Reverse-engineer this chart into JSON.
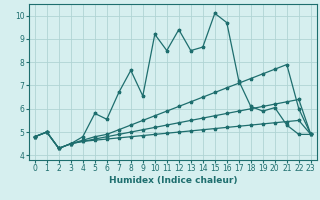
{
  "xlabel": "Humidex (Indice chaleur)",
  "xlim": [
    -0.5,
    23.5
  ],
  "ylim": [
    3.8,
    10.5
  ],
  "xticks": [
    0,
    1,
    2,
    3,
    4,
    5,
    6,
    7,
    8,
    9,
    10,
    11,
    12,
    13,
    14,
    15,
    16,
    17,
    18,
    19,
    20,
    21,
    22,
    23
  ],
  "yticks": [
    4,
    5,
    6,
    7,
    8,
    9,
    10
  ],
  "bg_color": "#d6efef",
  "grid_color": "#b0d4d4",
  "line_color": "#1e6e6e",
  "series": [
    [
      4.8,
      5.0,
      4.3,
      4.5,
      4.6,
      4.65,
      4.7,
      4.75,
      4.8,
      4.85,
      4.9,
      4.95,
      5.0,
      5.05,
      5.1,
      5.15,
      5.2,
      5.25,
      5.3,
      5.35,
      5.4,
      5.45,
      5.5,
      4.9
    ],
    [
      4.8,
      5.0,
      4.3,
      4.5,
      4.6,
      4.7,
      4.8,
      4.9,
      5.0,
      5.1,
      5.2,
      5.3,
      5.4,
      5.5,
      5.6,
      5.7,
      5.8,
      5.9,
      6.0,
      6.1,
      6.2,
      6.3,
      6.4,
      4.9
    ],
    [
      4.8,
      5.0,
      4.3,
      4.5,
      4.65,
      4.8,
      4.9,
      5.1,
      5.3,
      5.5,
      5.7,
      5.9,
      6.1,
      6.3,
      6.5,
      6.7,
      6.9,
      7.1,
      7.3,
      7.5,
      7.7,
      7.9,
      6.0,
      4.9
    ],
    [
      4.8,
      5.0,
      4.3,
      4.5,
      4.8,
      5.8,
      5.55,
      6.7,
      7.65,
      6.55,
      9.2,
      8.5,
      9.4,
      8.5,
      8.65,
      10.1,
      9.7,
      7.2,
      6.1,
      5.9,
      6.05,
      5.3,
      4.9,
      4.9
    ]
  ]
}
